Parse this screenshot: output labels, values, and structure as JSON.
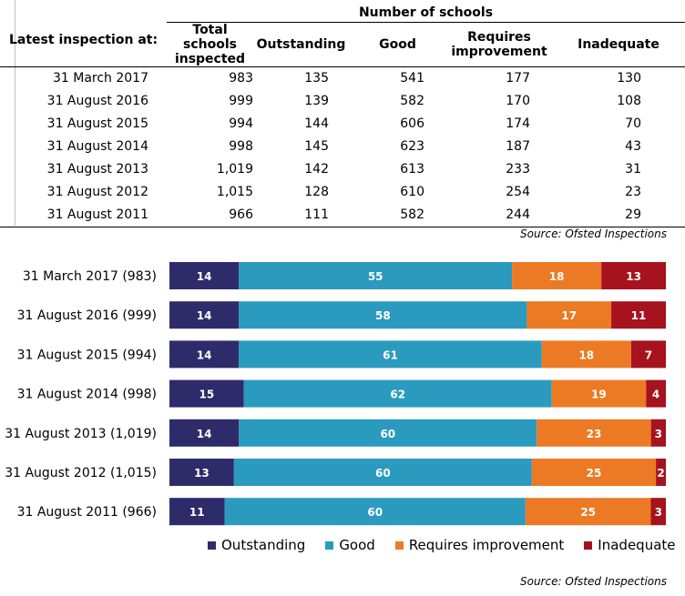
{
  "table": {
    "group_header": "Number of schools",
    "headers": [
      "Latest inspection at:",
      "Total schools inspected",
      "Outstanding",
      "Good",
      "Requires improvement",
      "Inadequate"
    ],
    "rows": [
      [
        "31 March 2017",
        "983",
        "135",
        "541",
        "177",
        "130"
      ],
      [
        "31 August 2016",
        "999",
        "139",
        "582",
        "170",
        "108"
      ],
      [
        "31 August 2015",
        "994",
        "144",
        "606",
        "174",
        "70"
      ],
      [
        "31 August 2014",
        "998",
        "145",
        "623",
        "187",
        "43"
      ],
      [
        "31 August 2013",
        "1,019",
        "142",
        "613",
        "233",
        "31"
      ],
      [
        "31 August 2012",
        "1,015",
        "128",
        "610",
        "254",
        "23"
      ],
      [
        "31 August 2011",
        "966",
        "111",
        "582",
        "244",
        "29"
      ]
    ],
    "source": "Source: Ofsted Inspections"
  },
  "chart_data": {
    "type": "bar",
    "orientation": "horizontal",
    "stacked": true,
    "percent": true,
    "categories": [
      "31 March 2017 (983)",
      "31 August 2016 (999)",
      "31 August 2015 (994)",
      "31 August 2014 (998)",
      "31 August 2013 (1,019)",
      "31 August 2012 (1,015)",
      "31 August 2011 (966)"
    ],
    "series": [
      {
        "name": "Outstanding",
        "color": "#2e2b6b",
        "values": [
          14,
          14,
          14,
          15,
          14,
          13,
          11
        ]
      },
      {
        "name": "Good",
        "color": "#2a9bbf",
        "values": [
          55,
          58,
          61,
          62,
          60,
          60,
          60
        ]
      },
      {
        "name": "Requires improvement",
        "color": "#ec7a24",
        "values": [
          18,
          17,
          18,
          19,
          23,
          25,
          25
        ]
      },
      {
        "name": "Inadequate",
        "color": "#a6121d",
        "values": [
          13,
          11,
          7,
          4,
          3,
          2,
          3
        ]
      }
    ],
    "xlim": [
      0,
      100
    ],
    "legend": "bottom",
    "source": "Source: Ofsted Inspections"
  }
}
